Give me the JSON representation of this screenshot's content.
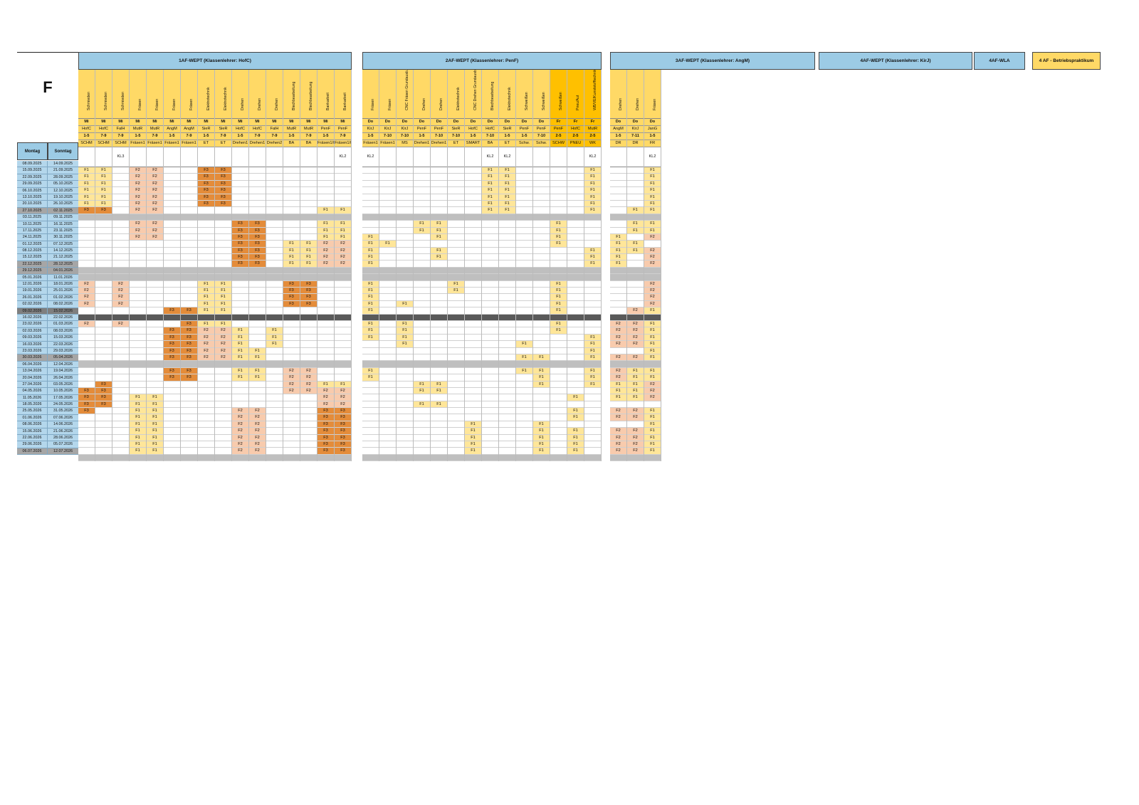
{
  "page_letter": "F",
  "date_headers": {
    "monday": "Montag",
    "sunday": "Sonntag"
  },
  "weeks": [
    {
      "mon": "08.09.2025",
      "sun": "14.09.2025",
      "t": "n"
    },
    {
      "mon": "15.09.2025",
      "sun": "21.09.2025",
      "t": "n"
    },
    {
      "mon": "22.09.2025",
      "sun": "28.09.2025",
      "t": "n"
    },
    {
      "mon": "29.09.2025",
      "sun": "05.10.2025",
      "t": "n"
    },
    {
      "mon": "06.10.2025",
      "sun": "12.10.2025",
      "t": "n"
    },
    {
      "mon": "13.10.2025",
      "sun": "19.10.2025",
      "t": "n"
    },
    {
      "mon": "20.10.2025",
      "sun": "26.10.2025",
      "t": "n"
    },
    {
      "mon": "27.10.2025",
      "sun": "02.11.2025",
      "t": "h"
    },
    {
      "mon": "03.11.2025",
      "sun": "09.11.2025",
      "t": "n"
    },
    {
      "mon": "10.11.2025",
      "sun": "16.11.2025",
      "t": "n"
    },
    {
      "mon": "17.11.2025",
      "sun": "23.11.2025",
      "t": "n"
    },
    {
      "mon": "24.11.2025",
      "sun": "30.11.2025",
      "t": "n"
    },
    {
      "mon": "01.12.2025",
      "sun": "07.12.2025",
      "t": "n"
    },
    {
      "mon": "08.12.2025",
      "sun": "14.12.2025",
      "t": "n"
    },
    {
      "mon": "15.12.2025",
      "sun": "21.12.2025",
      "t": "n"
    },
    {
      "mon": "22.12.2025",
      "sun": "28.12.2025",
      "t": "h"
    },
    {
      "mon": "29.12.2025",
      "sun": "04.01.2026",
      "t": "h"
    },
    {
      "mon": "05.01.2026",
      "sun": "11.01.2026",
      "t": "n"
    },
    {
      "mon": "12.01.2026",
      "sun": "18.01.2026",
      "t": "n"
    },
    {
      "mon": "19.01.2026",
      "sun": "25.01.2026",
      "t": "n"
    },
    {
      "mon": "26.01.2026",
      "sun": "01.02.2026",
      "t": "n"
    },
    {
      "mon": "02.02.2026",
      "sun": "08.02.2026",
      "t": "n"
    },
    {
      "mon": "09.02.2026",
      "sun": "15.02.2026",
      "t": "d"
    },
    {
      "mon": "16.02.2026",
      "sun": "22.02.2026",
      "t": "n"
    },
    {
      "mon": "23.02.2026",
      "sun": "01.03.2026",
      "t": "n"
    },
    {
      "mon": "02.03.2026",
      "sun": "08.03.2026",
      "t": "n"
    },
    {
      "mon": "09.03.2026",
      "sun": "15.03.2026",
      "t": "n"
    },
    {
      "mon": "16.03.2026",
      "sun": "22.03.2026",
      "t": "n"
    },
    {
      "mon": "23.03.2026",
      "sun": "29.03.2026",
      "t": "n"
    },
    {
      "mon": "30.03.2026",
      "sun": "05.04.2026",
      "t": "h"
    },
    {
      "mon": "06.04.2026",
      "sun": "12.04.2026",
      "t": "n"
    },
    {
      "mon": "13.04.2026",
      "sun": "19.04.2026",
      "t": "n"
    },
    {
      "mon": "20.04.2026",
      "sun": "26.04.2026",
      "t": "n"
    },
    {
      "mon": "27.04.2026",
      "sun": "03.05.2026",
      "t": "n"
    },
    {
      "mon": "04.05.2026",
      "sun": "10.05.2026",
      "t": "n"
    },
    {
      "mon": "11.05.2026",
      "sun": "17.05.2026",
      "t": "n"
    },
    {
      "mon": "18.05.2026",
      "sun": "24.05.2026",
      "t": "n"
    },
    {
      "mon": "25.05.2026",
      "sun": "31.05.2026",
      "t": "n"
    },
    {
      "mon": "01.06.2026",
      "sun": "07.06.2026",
      "t": "n"
    },
    {
      "mon": "08.06.2026",
      "sun": "14.06.2026",
      "t": "n"
    },
    {
      "mon": "15.06.2026",
      "sun": "21.06.2026",
      "t": "n"
    },
    {
      "mon": "22.06.2026",
      "sun": "28.06.2026",
      "t": "n"
    },
    {
      "mon": "29.06.2026",
      "sun": "05.07.2026",
      "t": "n"
    },
    {
      "mon": "06.07.2026",
      "sun": "12.07.2026",
      "t": "h"
    }
  ],
  "groups": [
    {
      "title": "1AF-WEPT (Klassenlehrer: HofC)",
      "columns": [
        {
          "subject": "Schmieden",
          "day": "Mi",
          "teacher": "HofC",
          "period": "1-5",
          "room": "SCHM",
          "kl": "",
          "c": "F1,F1,F1,F1,F1,F1,F3,,,,,,,,,,,F2,F2,F2,F2,,,F2,,,,,,,,,,F3,F3,F3,F3,,,,,,,"
        },
        {
          "subject": "Schmieden",
          "day": "Mi",
          "teacher": "HofC",
          "period": "7-9",
          "room": "SCHM",
          "kl": "",
          "c": "F1,F1,F1,F1,F1,F1,F3,,,,,,,,,,,,,,,,,,,,,,,,,,F3,F3,F3,F3,,,,,,,,"
        },
        {
          "subject": "Schmieden",
          "day": "Mi",
          "teacher": "FalH",
          "period": "7-9",
          "room": "SCHM",
          "kl": "KL3",
          "c": ",,,,,,,,,,,,,,,,,F2,F2,F2,F2,,,F2,,,,,,,,,,,,,,,,,,,,"
        },
        {
          "subject": "Fräsen",
          "day": "Mi",
          "teacher": "MutR",
          "period": "1-5",
          "room": "Fräsen1",
          "kl": "",
          "c": "F2,F2,F2,F2,F2,F2,F2,,F2,F2,F2,,,,,,,,,,,,,,,,,,,,,,,,F1,F1,F1,F1,F1,F1,F1,F1,F1,"
        },
        {
          "subject": "Fräsen",
          "day": "Mi",
          "teacher": "MutR",
          "period": "7-9",
          "room": "Fräsen1",
          "kl": "",
          "c": "F2,F2,F2,F2,F2,F2,F2,,F2,F2,F2,,,,,,,,,,,,,,,,,,,,,,,,F1,F1,F1,F1,F1,F1,F1,F1,F1,"
        },
        {
          "subject": "Fräsen",
          "day": "Mi",
          "teacher": "AngM",
          "period": "1-5",
          "room": "Fräsen1",
          "kl": "",
          "c": ",,,,,,,,,,,,,,,,,,,,,F3,,,F3,F3,F3,F3,F3,,F3,F3,,,,,,,,,,,,"
        },
        {
          "subject": "Fräsen",
          "day": "Mi",
          "teacher": "AngM",
          "period": "7-9",
          "room": "Fräsen1",
          "kl": "",
          "c": ",,,,,,,,,,,,,,,,,,,,,F3,,F3,F3,F3,F3,F3,F3,,F3,F3,,,,,,,,,,,,"
        },
        {
          "subject": "Elektrotechnik",
          "day": "Mi",
          "teacher": "SieR",
          "period": "1-5",
          "room": "ET",
          "kl": "",
          "c": "F3,F3,F3,F3,F3,F3,,,,,,,,,,,,F1,F1,F1,F1,F1,,F1,F2,F2,F2,F2,F2,,,,,,,,,,,,,,,"
        },
        {
          "subject": "Elektrotechnik",
          "day": "Mi",
          "teacher": "SieR",
          "period": "7-9",
          "room": "ET",
          "kl": "",
          "c": "F3,F3,F3,F3,F3,F3,,,,,,,,,,,,F1,F1,F1,F1,F1,,F1,F2,F2,F2,F2,F2,,,,,,,,,,,,,,,"
        },
        {
          "subject": "Drehen",
          "day": "Mi",
          "teacher": "HofC",
          "period": "1-5",
          "room": "Drehen1",
          "kl": "",
          "c": ",,,,,,,,F3,F3,F3,F3,F3,F3,F3,,,,,,,,,,F1,F1,F1,F1,F1,,F1,F1,,,,,F2,F2,F2,F2,F2,F2,F2,"
        },
        {
          "subject": "Drehen",
          "day": "Mi",
          "teacher": "HofC",
          "period": "7-9",
          "room": "Drehen1",
          "kl": "",
          "c": ",,,,,,,,F3,F3,F3,F3,F3,F3,F3,,,,,,,,,,,,,F1,F1,,F1,F1,,,,,F2,F2,F2,F2,F2,F2,F2,"
        },
        {
          "subject": "Drehen",
          "day": "Mi",
          "teacher": "FalH",
          "period": "7-9",
          "room": "Drehen2",
          "kl": "",
          "c": ",,,,,,,,,,,,,,,,,,,,,,,,F1,F1,F1,,,,,,,,,,,,,,,,,"
        },
        {
          "subject": "Blechbearbeitung",
          "day": "Mi",
          "teacher": "MutR",
          "period": "1-5",
          "room": "BA",
          "kl": "",
          "c": ",,,,,,,,,,,F1,F1,F1,F1,,,F3,F3,F3,F3,,,,,,,,,,F2,F2,F2,F2,,,,,,,,,,"
        },
        {
          "subject": "Blechbearbeitung",
          "day": "Mi",
          "teacher": "MutR",
          "period": "7-9",
          "room": "BA",
          "kl": "",
          "c": ",,,,,,,,,,,F1,F1,F1,F1,,,F3,F3,F3,F3,,,,,,,,,,F2,F2,F2,F2,,,,,,,,,,"
        },
        {
          "subject": "Bankarbeit",
          "day": "Mi",
          "teacher": "PenF",
          "period": "1-5",
          "room": "Fräsen1/BA",
          "kl": "",
          "c": ",,,,,,F1,,F1,F1,F1,F2,F2,F2,F2,,,,,,,,,,,,,,,,,,F1,F2,F2,F2,F3,F3,F3,F3,F3,F3,F3,"
        },
        {
          "subject": "Bankarbeit",
          "day": "Mi",
          "teacher": "PenF",
          "period": "7-9",
          "room": "Fräsen1/BA",
          "kl": "KL2",
          "c": ",,,,,,F1,,F1,F1,F1,F2,F2,F2,F2,,,,,,,,,,,,,,,,,,F1,F2,F2,F2,F3,F3,F3,F3,F3,F3,F3,"
        }
      ]
    },
    {
      "title": "2AF-WEPT (Klassenlehrer: PenF)",
      "columns": [
        {
          "subject": "Fräsen",
          "day": "Do",
          "teacher": "KirJ",
          "period": "1-5",
          "room": "Fräsen1",
          "kl": "KL2",
          "c": ",,,,,,,,,,F1,F1,F1,F1,F1,,,F1,F1,F1,F1,F1,,F1,F1,F1,,,,,F1,F1,,,,,,,,,,,,"
        },
        {
          "subject": "Fräsen",
          "day": "Do",
          "teacher": "KirJ",
          "period": "7-10",
          "room": "Fräsen1",
          "kl": "",
          "c": ",,,,,,,,,,,F1,,,,,,,,,,,,,,,,,,,,,,,,,,,,,,,,"
        },
        {
          "subject": "CNC Fräsen Grundausb. Heidenhain",
          "day": "Do",
          "teacher": "KirJ",
          "period": "7-10",
          "room": "MS",
          "kl": "",
          "c": ",,,,,,,,,,,,,,,,,,,,F1,,,F1,F1,F1,F1,,,,,,,,,,,,,,,,,"
        },
        {
          "subject": "Drehen",
          "day": "Do",
          "teacher": "PenF",
          "period": "1-5",
          "room": "Drehen1",
          "kl": "",
          "c": ",,,,,,,,F1,F1,,,,,,,,,,,,,,,,,,,,,,,F1,F1,,F1,,,,,,,,"
        },
        {
          "subject": "Drehen",
          "day": "Do",
          "teacher": "PenF",
          "period": "7-10",
          "room": "Drehen1",
          "kl": "",
          "c": ",,,,,,,,F1,F1,F1,,F1,F1,,,,,,,,,,,,,,,,,,,F1,F1,,F1,,,,,,,,"
        },
        {
          "subject": "Elektrotechnik",
          "day": "Do",
          "teacher": "SieR",
          "period": "7-10",
          "room": "ET",
          "kl": "",
          "c": ",,,,,,,,,,,,,,,,,F1,F1,,,,,,,,,,,,,,,,,,,,,,,,,"
        },
        {
          "subject": "CNC Drehen Grundausb. DIN 66025",
          "day": "Do",
          "teacher": "HofC",
          "period": "1-5",
          "room": "SMART",
          "kl": "",
          "c": ",,,,,,,,,,,,,,,,,,,,,,,,,,,,,,,,,,,,,,F1,F1,F1,F1,F1,"
        },
        {
          "subject": "Blechbearbeitung",
          "day": "Do",
          "teacher": "HofC",
          "period": "7-10",
          "room": "BA",
          "kl": "KL2",
          "c": "F1,F1,F1,F1,F1,F1,F1,,,,,,,,,,,,,,,,,,,,,,,,,,,,,,,,,,,,,"
        },
        {
          "subject": "Elektrotechnik",
          "day": "Do",
          "teacher": "SieR",
          "period": "1-5",
          "room": "ET",
          "kl": "KL2",
          "c": "F1,F1,F1,F1,F1,F1,F1,,,,,,,,,,,,,,,,,,,,,,,,,,,,,,,,,,,,,"
        },
        {
          "subject": "Schweißen",
          "day": "Do",
          "teacher": "PenF",
          "period": "1-5",
          "room": "Schw.",
          "kl": "",
          "c": ",,,,,,,,,,,,,,,,,,,,,,,,,,F1,,F1,,F1,,,,,,,,,,,,,"
        },
        {
          "subject": "Schweißen",
          "day": "Do",
          "teacher": "PenF",
          "period": "7-10",
          "room": "Schw.",
          "kl": "",
          "c": ",,,,,,,,,,,,,,,,,,,,,,,,,,,,F1,,F1,F1,F1,,,,,,F1,F1,F1,F1,F1,"
        },
        {
          "subject": "Schweißen",
          "day": "Fr",
          "teacher": "PenF",
          "period": "2-5",
          "room": "SCHW",
          "kl": "",
          "c": ",,,,,,,,F1,F1,F1,F1,,,,,,F1,F1,F1,F1,F1,,F1,F1,,,,,,,,,,,,,,,,,,,"
        },
        {
          "subject": "Pneu/Aut",
          "day": "Fr",
          "teacher": "HofC",
          "period": "2-5",
          "room": "PNEU",
          "kl": "",
          "c": ",,,,,,,,,,,,,,,,,,,,,,,,,,,,,,,,,,F1,,F1,F1,,F1,F1,F1,F1,"
        },
        {
          "subject": "WB/VE/Kunststofftechnik",
          "day": "Fr",
          "teacher": "MutR",
          "period": "2-5",
          "room": "WK",
          "kl": "KL2",
          "c": "F1,F1,F1,F1,F1,F1,F1,,,,,,F1,F1,F1,,,,,,,,,,,F1,F1,F1,F1,,F1,F1,F1,,,,,,,,,,,"
        }
      ]
    },
    {
      "title": "3AF-WEPT (Klassenlehrer: AngM)",
      "columns": [
        {
          "subject": "Drehen",
          "day": "Do",
          "teacher": "AngM",
          "period": "1-5",
          "room": "DR",
          "kl": "",
          "c": ",,,,,,,,,,F1,F1,F1,F1,F1,,,,,,,,,F2,F2,F2,F2,,F2,,F2,F2,F1,F1,F1,,F2,F2,,F2,F2,F2,F2,"
        },
        {
          "subject": "Drehen",
          "day": "Do",
          "teacher": "KirJ",
          "period": "7-11",
          "room": "DR",
          "kl": "",
          "c": ",,,,,,F1,,F1,F1,,F1,F1,,,,,,,,,F2,,F2,F2,F2,F2,,F2,,F1,F1,F1,F1,F1,,F2,F2,,F2,F2,F2,F2,"
        },
        {
          "subject": "Fräsen",
          "day": "Do",
          "teacher": "JanG",
          "period": "1-5",
          "room": "FR",
          "kl": "KL2",
          "c": "F1,F1,F1,F1,F1,F1,F1,,F1,F1,F2,,F2,F2,F2,,,F2,F2,F2,F2,F1,,F1,F1,F1,F1,F1,F1,,F1,F1,F2,F2,F2,,F1,F1,F1,F1,F1,F1,F1,"
        }
      ]
    }
  ],
  "group_headers": {
    "g4": "4AF-WEPT (Klassenlehrer: KirJ)",
    "g5": "4AF-WLA",
    "g6": "4 AF - Betriebspraktikum"
  }
}
